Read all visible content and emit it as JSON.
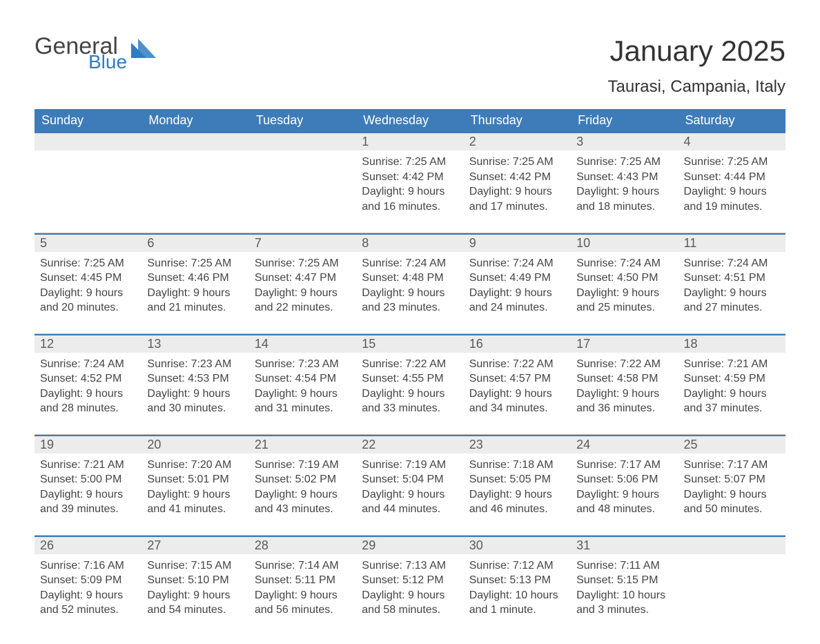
{
  "logo": {
    "general": "General",
    "blue": "Blue"
  },
  "title": "January 2025",
  "location": "Taurasi, Campania, Italy",
  "colors": {
    "header_bg": "#3d7cb8",
    "header_text": "#ffffff",
    "daynum_bg": "#ececec",
    "daynum_border": "#3d7cb8",
    "body_text": "#444444",
    "logo_blue": "#2f7bc4",
    "divider": "#bfbfbf"
  },
  "typography": {
    "title_fontsize": 42,
    "location_fontsize": 24,
    "dayheader_fontsize": 18,
    "cell_fontsize": 16
  },
  "day_headers": [
    "Sunday",
    "Monday",
    "Tuesday",
    "Wednesday",
    "Thursday",
    "Friday",
    "Saturday"
  ],
  "weeks": [
    [
      null,
      null,
      null,
      {
        "n": "1",
        "sunrise": "Sunrise: 7:25 AM",
        "sunset": "Sunset: 4:42 PM",
        "d1": "Daylight: 9 hours",
        "d2": "and 16 minutes."
      },
      {
        "n": "2",
        "sunrise": "Sunrise: 7:25 AM",
        "sunset": "Sunset: 4:42 PM",
        "d1": "Daylight: 9 hours",
        "d2": "and 17 minutes."
      },
      {
        "n": "3",
        "sunrise": "Sunrise: 7:25 AM",
        "sunset": "Sunset: 4:43 PM",
        "d1": "Daylight: 9 hours",
        "d2": "and 18 minutes."
      },
      {
        "n": "4",
        "sunrise": "Sunrise: 7:25 AM",
        "sunset": "Sunset: 4:44 PM",
        "d1": "Daylight: 9 hours",
        "d2": "and 19 minutes."
      }
    ],
    [
      {
        "n": "5",
        "sunrise": "Sunrise: 7:25 AM",
        "sunset": "Sunset: 4:45 PM",
        "d1": "Daylight: 9 hours",
        "d2": "and 20 minutes."
      },
      {
        "n": "6",
        "sunrise": "Sunrise: 7:25 AM",
        "sunset": "Sunset: 4:46 PM",
        "d1": "Daylight: 9 hours",
        "d2": "and 21 minutes."
      },
      {
        "n": "7",
        "sunrise": "Sunrise: 7:25 AM",
        "sunset": "Sunset: 4:47 PM",
        "d1": "Daylight: 9 hours",
        "d2": "and 22 minutes."
      },
      {
        "n": "8",
        "sunrise": "Sunrise: 7:24 AM",
        "sunset": "Sunset: 4:48 PM",
        "d1": "Daylight: 9 hours",
        "d2": "and 23 minutes."
      },
      {
        "n": "9",
        "sunrise": "Sunrise: 7:24 AM",
        "sunset": "Sunset: 4:49 PM",
        "d1": "Daylight: 9 hours",
        "d2": "and 24 minutes."
      },
      {
        "n": "10",
        "sunrise": "Sunrise: 7:24 AM",
        "sunset": "Sunset: 4:50 PM",
        "d1": "Daylight: 9 hours",
        "d2": "and 25 minutes."
      },
      {
        "n": "11",
        "sunrise": "Sunrise: 7:24 AM",
        "sunset": "Sunset: 4:51 PM",
        "d1": "Daylight: 9 hours",
        "d2": "and 27 minutes."
      }
    ],
    [
      {
        "n": "12",
        "sunrise": "Sunrise: 7:24 AM",
        "sunset": "Sunset: 4:52 PM",
        "d1": "Daylight: 9 hours",
        "d2": "and 28 minutes."
      },
      {
        "n": "13",
        "sunrise": "Sunrise: 7:23 AM",
        "sunset": "Sunset: 4:53 PM",
        "d1": "Daylight: 9 hours",
        "d2": "and 30 minutes."
      },
      {
        "n": "14",
        "sunrise": "Sunrise: 7:23 AM",
        "sunset": "Sunset: 4:54 PM",
        "d1": "Daylight: 9 hours",
        "d2": "and 31 minutes."
      },
      {
        "n": "15",
        "sunrise": "Sunrise: 7:22 AM",
        "sunset": "Sunset: 4:55 PM",
        "d1": "Daylight: 9 hours",
        "d2": "and 33 minutes."
      },
      {
        "n": "16",
        "sunrise": "Sunrise: 7:22 AM",
        "sunset": "Sunset: 4:57 PM",
        "d1": "Daylight: 9 hours",
        "d2": "and 34 minutes."
      },
      {
        "n": "17",
        "sunrise": "Sunrise: 7:22 AM",
        "sunset": "Sunset: 4:58 PM",
        "d1": "Daylight: 9 hours",
        "d2": "and 36 minutes."
      },
      {
        "n": "18",
        "sunrise": "Sunrise: 7:21 AM",
        "sunset": "Sunset: 4:59 PM",
        "d1": "Daylight: 9 hours",
        "d2": "and 37 minutes."
      }
    ],
    [
      {
        "n": "19",
        "sunrise": "Sunrise: 7:21 AM",
        "sunset": "Sunset: 5:00 PM",
        "d1": "Daylight: 9 hours",
        "d2": "and 39 minutes."
      },
      {
        "n": "20",
        "sunrise": "Sunrise: 7:20 AM",
        "sunset": "Sunset: 5:01 PM",
        "d1": "Daylight: 9 hours",
        "d2": "and 41 minutes."
      },
      {
        "n": "21",
        "sunrise": "Sunrise: 7:19 AM",
        "sunset": "Sunset: 5:02 PM",
        "d1": "Daylight: 9 hours",
        "d2": "and 43 minutes."
      },
      {
        "n": "22",
        "sunrise": "Sunrise: 7:19 AM",
        "sunset": "Sunset: 5:04 PM",
        "d1": "Daylight: 9 hours",
        "d2": "and 44 minutes."
      },
      {
        "n": "23",
        "sunrise": "Sunrise: 7:18 AM",
        "sunset": "Sunset: 5:05 PM",
        "d1": "Daylight: 9 hours",
        "d2": "and 46 minutes."
      },
      {
        "n": "24",
        "sunrise": "Sunrise: 7:17 AM",
        "sunset": "Sunset: 5:06 PM",
        "d1": "Daylight: 9 hours",
        "d2": "and 48 minutes."
      },
      {
        "n": "25",
        "sunrise": "Sunrise: 7:17 AM",
        "sunset": "Sunset: 5:07 PM",
        "d1": "Daylight: 9 hours",
        "d2": "and 50 minutes."
      }
    ],
    [
      {
        "n": "26",
        "sunrise": "Sunrise: 7:16 AM",
        "sunset": "Sunset: 5:09 PM",
        "d1": "Daylight: 9 hours",
        "d2": "and 52 minutes."
      },
      {
        "n": "27",
        "sunrise": "Sunrise: 7:15 AM",
        "sunset": "Sunset: 5:10 PM",
        "d1": "Daylight: 9 hours",
        "d2": "and 54 minutes."
      },
      {
        "n": "28",
        "sunrise": "Sunrise: 7:14 AM",
        "sunset": "Sunset: 5:11 PM",
        "d1": "Daylight: 9 hours",
        "d2": "and 56 minutes."
      },
      {
        "n": "29",
        "sunrise": "Sunrise: 7:13 AM",
        "sunset": "Sunset: 5:12 PM",
        "d1": "Daylight: 9 hours",
        "d2": "and 58 minutes."
      },
      {
        "n": "30",
        "sunrise": "Sunrise: 7:12 AM",
        "sunset": "Sunset: 5:13 PM",
        "d1": "Daylight: 10 hours",
        "d2": "and 1 minute."
      },
      {
        "n": "31",
        "sunrise": "Sunrise: 7:11 AM",
        "sunset": "Sunset: 5:15 PM",
        "d1": "Daylight: 10 hours",
        "d2": "and 3 minutes."
      },
      null
    ]
  ]
}
